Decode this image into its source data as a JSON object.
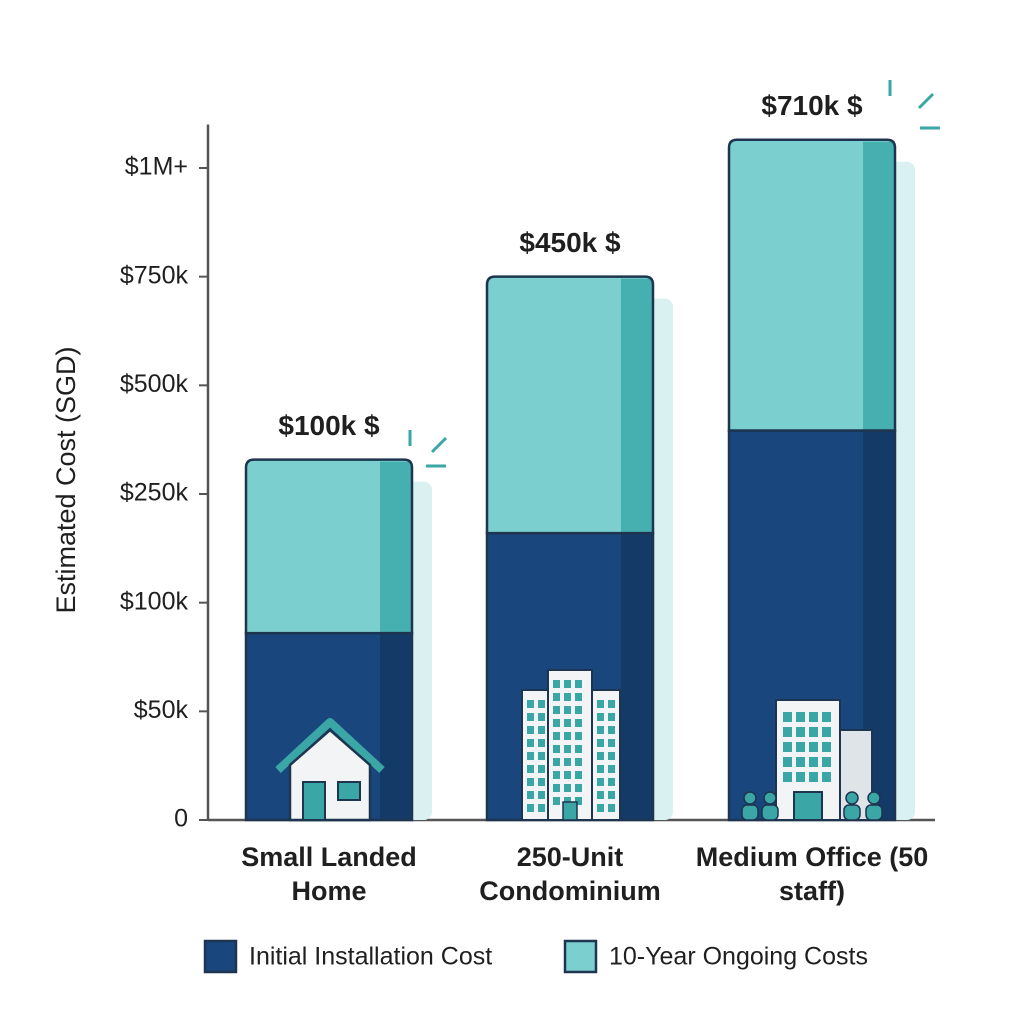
{
  "chart_data": {
    "type": "stacked_bar",
    "y_axis_title": "Estimated Cost (SGD)",
    "categories": [
      "Small Landed Home",
      "250-Unit Condominium",
      "Medium Office (50 staff)"
    ],
    "series": [
      {
        "name": "Initial Installation Cost",
        "color": "#19467c",
        "shade": "#143a68",
        "values": [
          86000,
          196000,
          396000
        ]
      },
      {
        "name": "10-Year Ongoing Costs",
        "color": "#7ccfcf",
        "shade": "#46b0b0",
        "values": [
          243000,
          554000,
          669000
        ]
      }
    ],
    "annotations": [
      "$100k $",
      "$450k $",
      "$710k $"
    ],
    "ylim": [
      0,
      1100000
    ],
    "yticks": [
      0,
      {
        "value": 50000,
        "label": "$50k"
      },
      {
        "value": 100000,
        "label": "$100k"
      },
      {
        "value": 250000,
        "label": "$250k"
      },
      {
        "value": 500000,
        "label": "$500k"
      },
      {
        "value": 750000,
        "label": "$750k"
      },
      {
        "value": 1000000,
        "label": "$1M+"
      }
    ],
    "grid": false,
    "legend": "bottom"
  }
}
